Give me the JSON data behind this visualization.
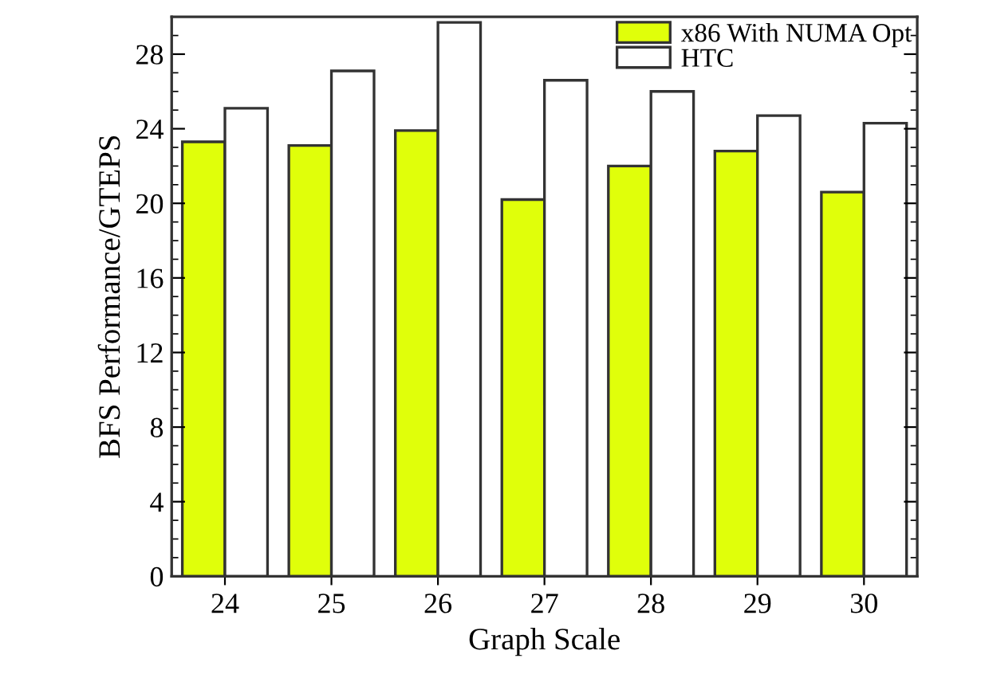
{
  "chart_data": {
    "type": "bar",
    "xlabel": "Graph Scale",
    "ylabel": "BFS Performance/GTEPS",
    "categories": [
      "24",
      "25",
      "26",
      "27",
      "28",
      "29",
      "30"
    ],
    "series": [
      {
        "name": "x86 With NUMA Opt",
        "color": "#e0ff0a",
        "values": [
          23.3,
          23.1,
          23.9,
          20.2,
          22.0,
          22.8,
          20.6
        ]
      },
      {
        "name": "HTC",
        "color": "#ffffff",
        "values": [
          25.1,
          27.1,
          29.7,
          26.6,
          26.0,
          24.7,
          24.3
        ]
      }
    ],
    "ylim": [
      0,
      30
    ],
    "yticks": [
      0,
      4,
      8,
      12,
      16,
      20,
      24,
      28
    ],
    "grid": false,
    "legend": "top right"
  }
}
